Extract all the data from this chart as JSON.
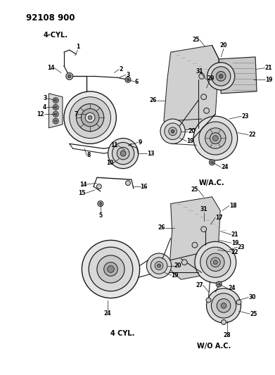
{
  "title_code": "92108 900",
  "bg": "#f5f5f0",
  "lc": "#1a1a1a",
  "tc": "#000000",
  "gray1": "#888888",
  "gray2": "#aaaaaa",
  "gray3": "#cccccc",
  "gray4": "#666666",
  "figsize": [
    3.91,
    5.33
  ],
  "dpi": 100,
  "labels": {
    "top_left": "4-CYL.",
    "top_right_wac": "W/A.C.",
    "bot_cyl": "4 CYL.",
    "bot_woa": "W/O A.C."
  }
}
